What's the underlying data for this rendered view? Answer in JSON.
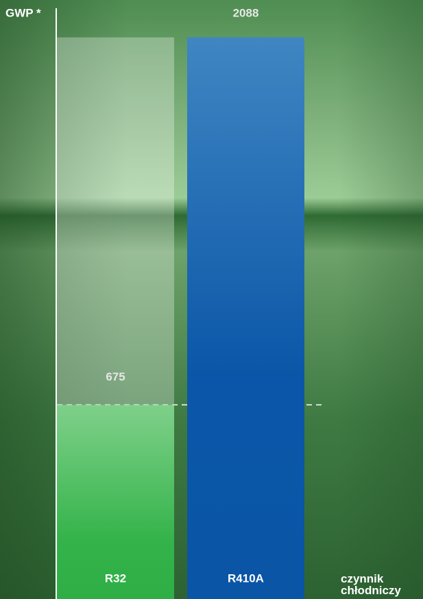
{
  "chart_data": {
    "type": "bar",
    "y_label": "GWP *",
    "x_label": "czynnik chłodniczy",
    "categories": [
      "R32",
      "R410A"
    ],
    "values": [
      675,
      2088
    ],
    "colors": [
      "#3bb54a",
      "#1557a8"
    ],
    "ylim": [
      0,
      2200
    ]
  }
}
